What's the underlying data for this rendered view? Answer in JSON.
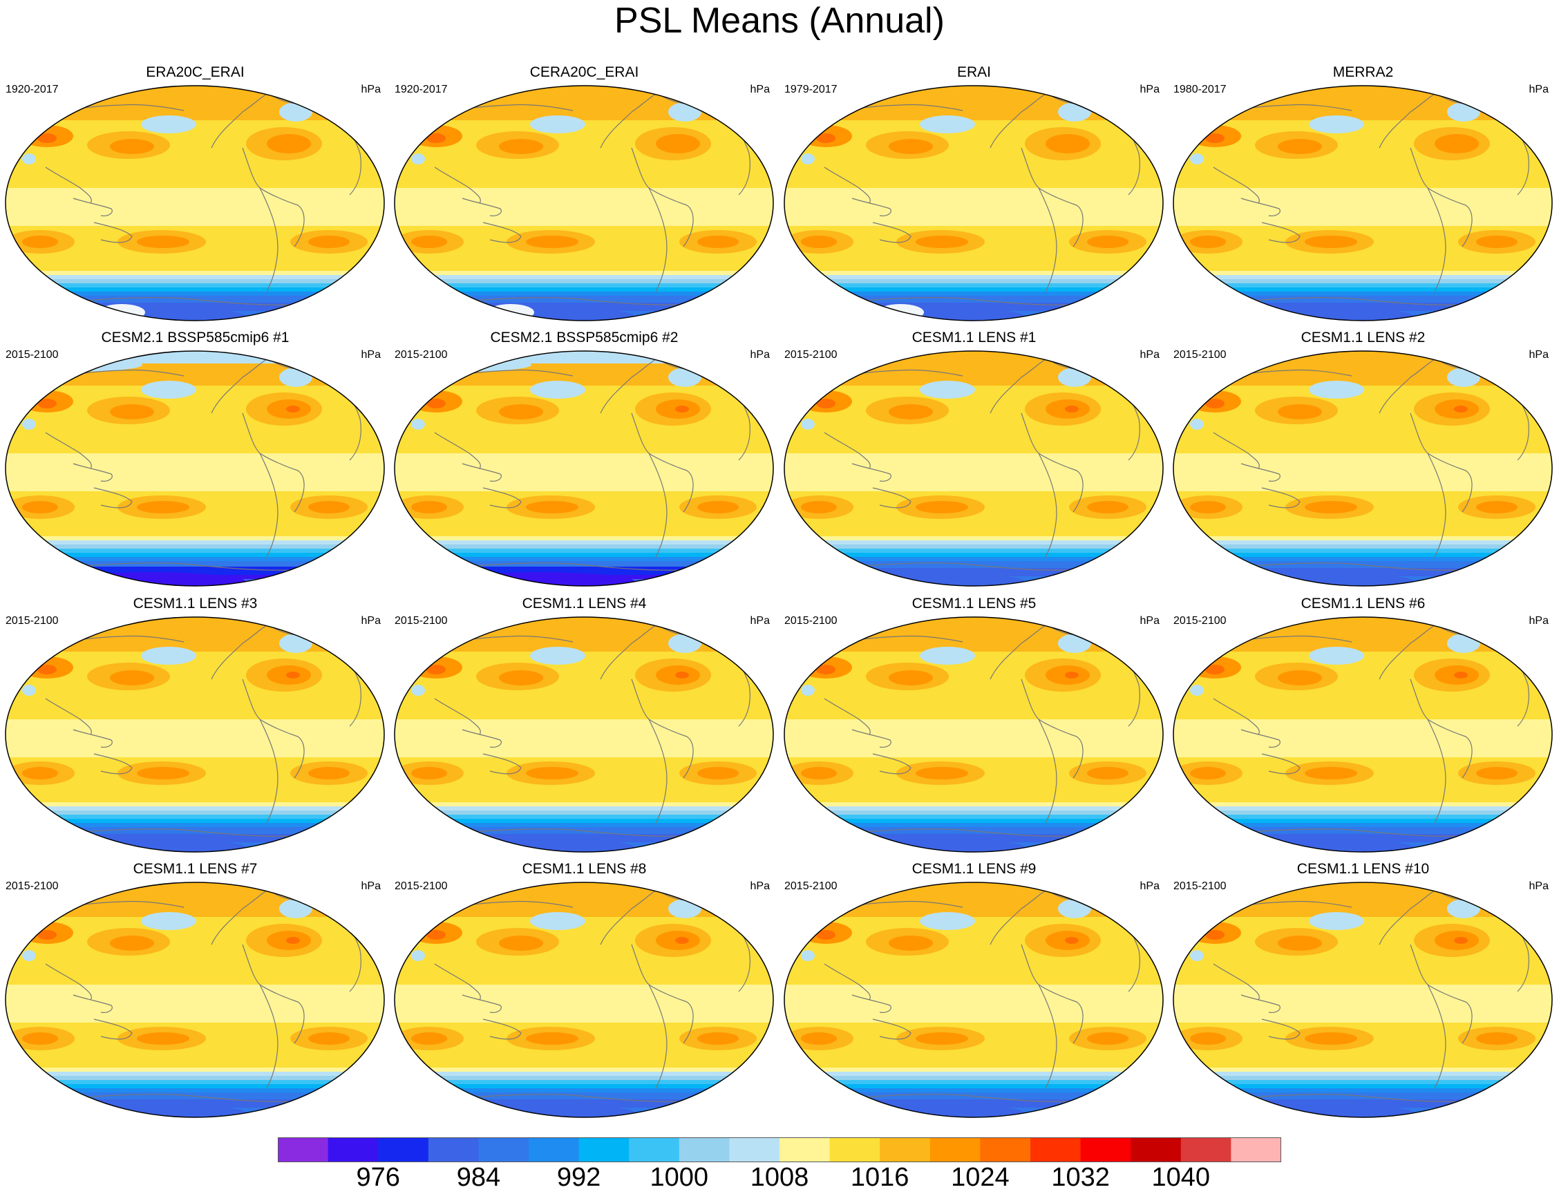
{
  "title": "PSL Means (Annual)",
  "units": "hPa",
  "panels": [
    {
      "title": "ERA20C_ERAI",
      "period": "1920-2017",
      "units": "hPa",
      "kind": "reanalysis",
      "ice": true
    },
    {
      "title": "CERA20C_ERAI",
      "period": "1920-2017",
      "units": "hPa",
      "kind": "reanalysis",
      "ice": true
    },
    {
      "title": "ERAI",
      "period": "1979-2017",
      "units": "hPa",
      "kind": "reanalysis",
      "ice": true
    },
    {
      "title": "MERRA2",
      "period": "1980-2017",
      "units": "hPa",
      "kind": "reanalysis",
      "ice": false
    },
    {
      "title": "CESM2.1 BSSP585cmip6 #1",
      "period": "2015-2100",
      "units": "hPa",
      "kind": "cesm2",
      "ice": false
    },
    {
      "title": "CESM2.1 BSSP585cmip6 #2",
      "period": "2015-2100",
      "units": "hPa",
      "kind": "cesm2",
      "ice": false
    },
    {
      "title": "CESM1.1 LENS #1",
      "period": "2015-2100",
      "units": "hPa",
      "kind": "lens",
      "ice": false
    },
    {
      "title": "CESM1.1 LENS #2",
      "period": "2015-2100",
      "units": "hPa",
      "kind": "lens",
      "ice": false
    },
    {
      "title": "CESM1.1 LENS #3",
      "period": "2015-2100",
      "units": "hPa",
      "kind": "lens",
      "ice": false
    },
    {
      "title": "CESM1.1 LENS #4",
      "period": "2015-2100",
      "units": "hPa",
      "kind": "lens",
      "ice": false
    },
    {
      "title": "CESM1.1 LENS #5",
      "period": "2015-2100",
      "units": "hPa",
      "kind": "lens",
      "ice": false
    },
    {
      "title": "CESM1.1 LENS #6",
      "period": "2015-2100",
      "units": "hPa",
      "kind": "lens",
      "ice": false
    },
    {
      "title": "CESM1.1 LENS #7",
      "period": "2015-2100",
      "units": "hPa",
      "kind": "lens",
      "ice": false
    },
    {
      "title": "CESM1.1 LENS #8",
      "period": "2015-2100",
      "units": "hPa",
      "kind": "lens",
      "ice": false
    },
    {
      "title": "CESM1.1 LENS #9",
      "period": "2015-2100",
      "units": "hPa",
      "kind": "lens",
      "ice": false
    },
    {
      "title": "CESM1.1 LENS #10",
      "period": "2015-2100",
      "units": "hPa",
      "kind": "lens",
      "ice": false
    }
  ],
  "colorbar": {
    "colors": [
      "#8a2be2",
      "#3a12f2",
      "#1428f0",
      "#3c64e6",
      "#3278ea",
      "#1e8cf0",
      "#00b4f5",
      "#3cc3f5",
      "#96d2ee",
      "#b9e1f5",
      "#fff596",
      "#fcdf38",
      "#fcb71a",
      "#ff9600",
      "#ff6e00",
      "#ff3200",
      "#fa0000",
      "#c80000",
      "#dc3c3c",
      "#ffb4b4"
    ],
    "labels": [
      "976",
      "984",
      "992",
      "1000",
      "1008",
      "1016",
      "1024",
      "1032",
      "1040"
    ]
  }
}
